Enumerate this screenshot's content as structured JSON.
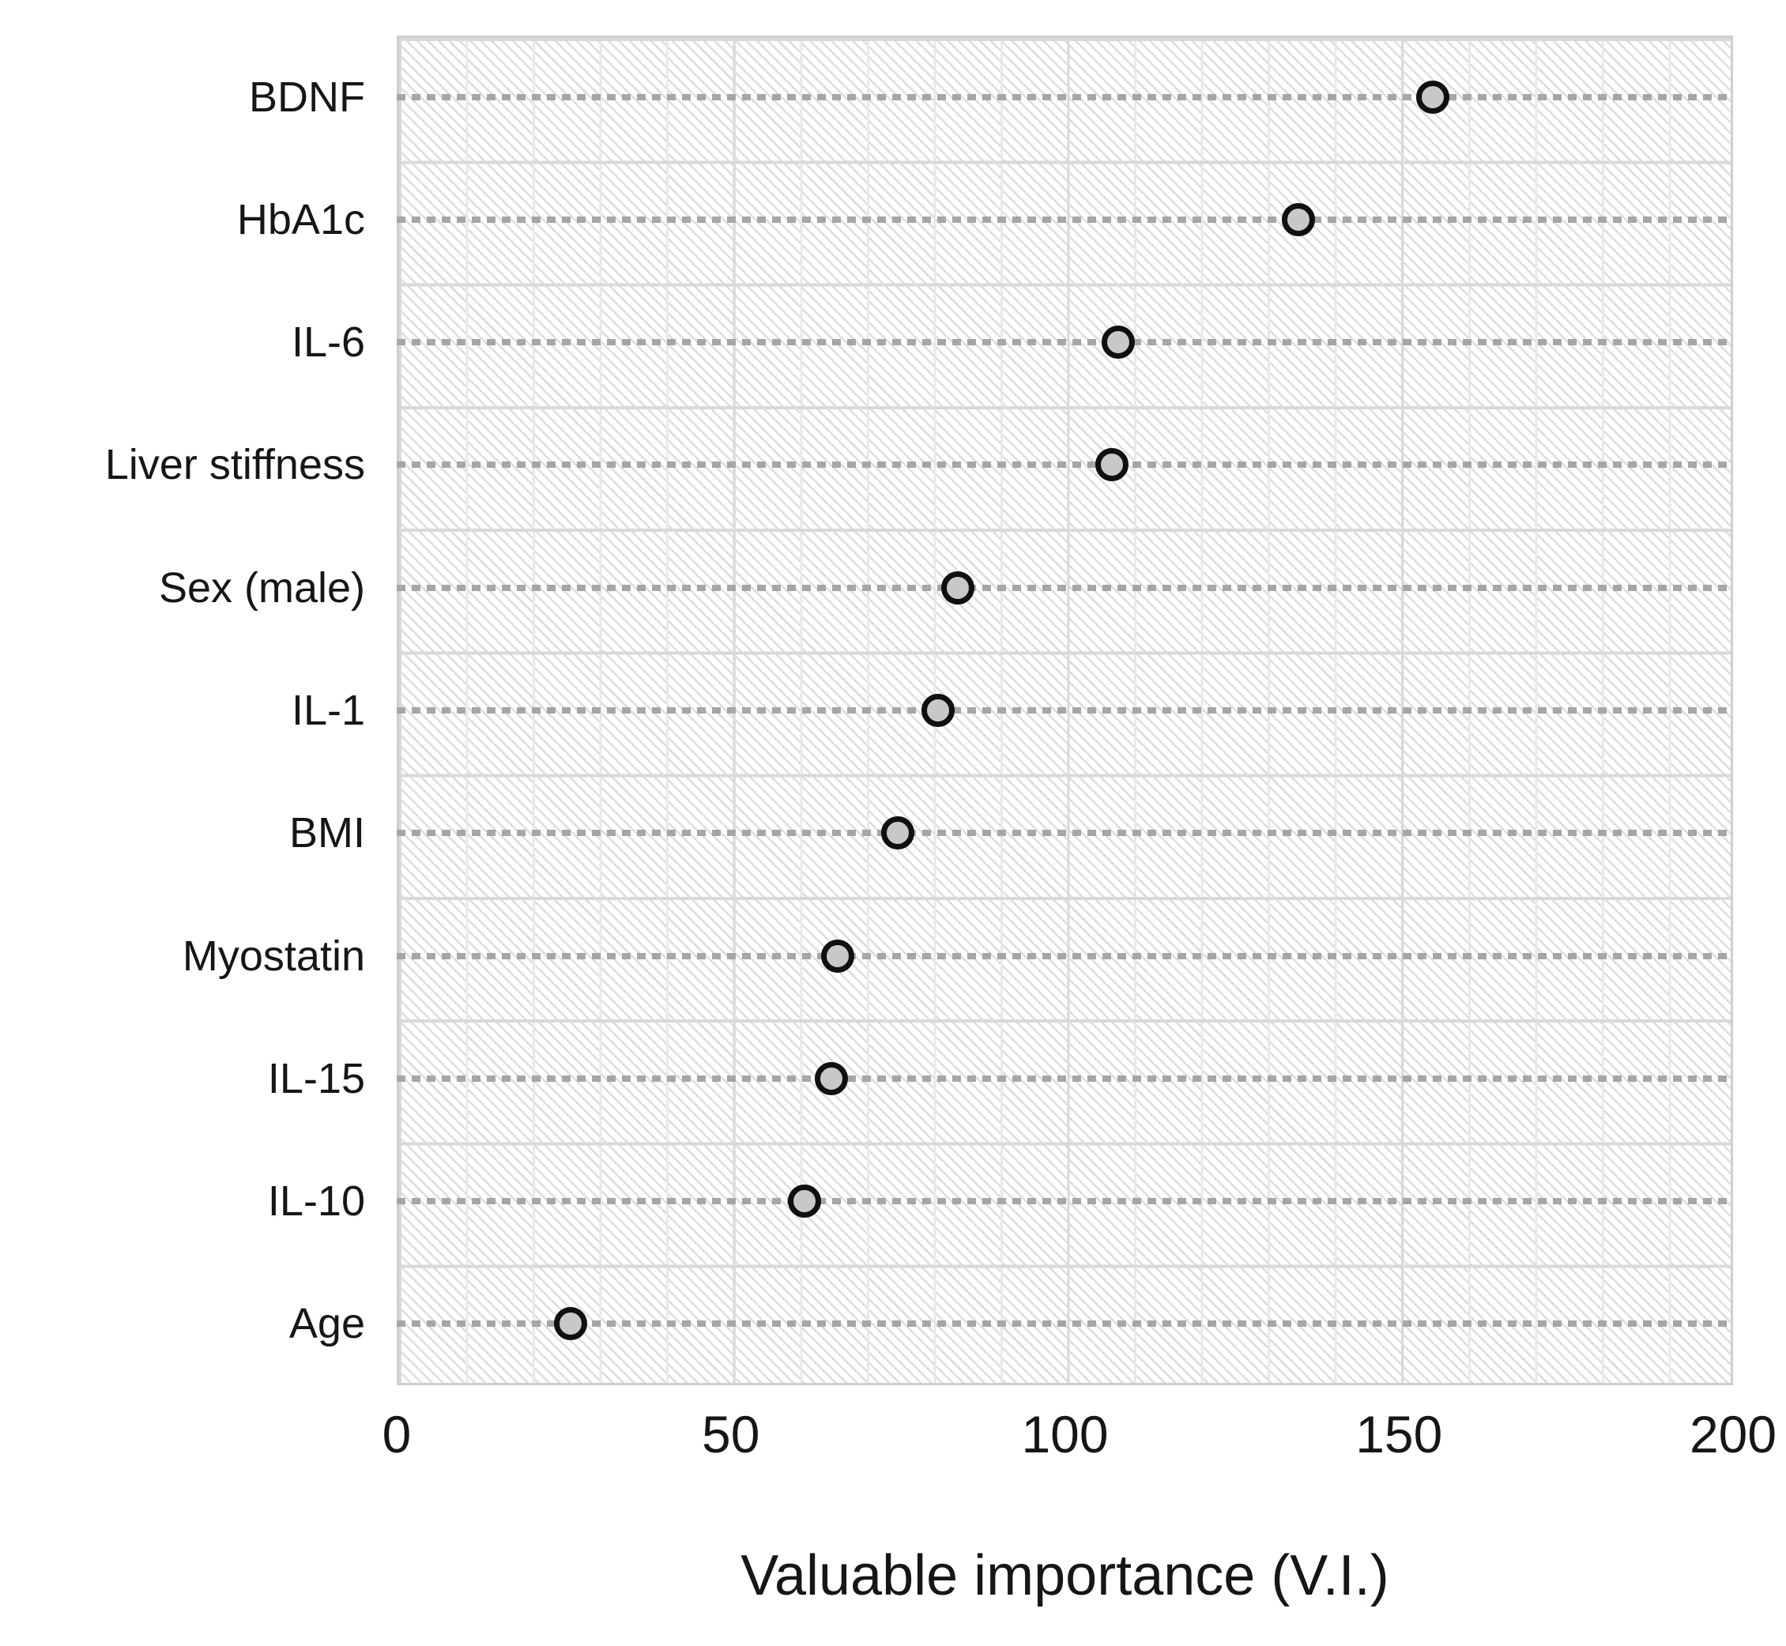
{
  "chart_data": {
    "type": "scatter",
    "title": "",
    "xlabel": "Valuable importance (V.I.)",
    "ylabel": "",
    "categories": [
      "BDNF",
      "HbA1c",
      "IL-6",
      "Liver stiffness",
      "Sex (male)",
      "IL-1",
      "BMI",
      "Myostatin",
      "IL-15",
      "IL-10",
      "Age"
    ],
    "values": [
      155,
      135,
      108,
      107,
      84,
      81,
      75,
      66,
      65,
      61,
      26
    ],
    "xlim": [
      0,
      200
    ],
    "x_ticks": [
      "0",
      "50",
      "100",
      "150",
      "200"
    ],
    "x_tick_values": [
      0,
      50,
      100,
      150,
      200
    ],
    "legend": "none",
    "grid": "minor vertical gridlines every 10 units; dotted horizontal guide line per category; hatched plot-area fill",
    "marker_style": "circle, gray fill with black outline"
  },
  "colors": {
    "marker_fill": "#c8c8c8",
    "marker_stroke": "#101010",
    "guide_dotted_line": "#a6a6a6",
    "hatch_pattern": "#dddddd",
    "row_separator": "#d9d9d9",
    "plot_border": "#cfcfcf",
    "text": "#161616",
    "background": "#ffffff"
  }
}
